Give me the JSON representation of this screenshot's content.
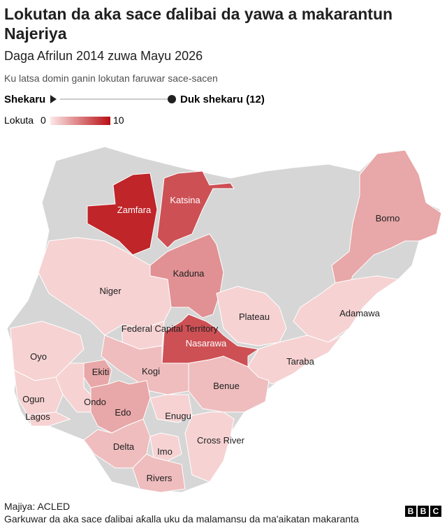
{
  "header": {
    "title": "Lokutan da aka sace ɗalibai da yawa a makarantun Najeriya",
    "subtitle": "Daga Afrilun 2014 zuwa Mayu 2026",
    "description": "Ku latsa domin ganin lokutan faruwar sace-sacen"
  },
  "slider": {
    "start_label": "Shekaru",
    "end_label": "Duk shekaru (12)"
  },
  "legend": {
    "title": "Lokuta",
    "min": 0,
    "max": 10,
    "min_color": "#fde8e8",
    "max_color": "#b80f14"
  },
  "states": [
    {
      "name": "Zamfara",
      "value": 9
    },
    {
      "name": "Katsina",
      "value": 7
    },
    {
      "name": "Kaduna",
      "value": 4
    },
    {
      "name": "Nasarawa",
      "value": 7
    },
    {
      "name": "Borno",
      "value": 3
    },
    {
      "name": "Niger",
      "value": 1
    },
    {
      "name": "Federal Capital Territory",
      "value": 1
    },
    {
      "name": "Plateau",
      "value": 1
    },
    {
      "name": "Adamawa",
      "value": 1
    },
    {
      "name": "Taraba",
      "value": 1
    },
    {
      "name": "Benue",
      "value": 2
    },
    {
      "name": "Kogi",
      "value": 2
    },
    {
      "name": "Oyo",
      "value": 1
    },
    {
      "name": "Ekiti",
      "value": 3
    },
    {
      "name": "Ondo",
      "value": 1
    },
    {
      "name": "Ogun",
      "value": 1
    },
    {
      "name": "Lagos",
      "value": 1
    },
    {
      "name": "Edo",
      "value": 3
    },
    {
      "name": "Delta",
      "value": 2
    },
    {
      "name": "Enugu",
      "value": 1
    },
    {
      "name": "Imo",
      "value": 1
    },
    {
      "name": "Rivers",
      "value": 2
    },
    {
      "name": "Cross River",
      "value": 1
    }
  ],
  "footer": {
    "source": "Majiya: ACLED",
    "note": "Garkuwar da aka sace ɗalibai aƙalla uku da malamansu da ma'aikatan makaranta",
    "logo": [
      "B",
      "B",
      "C"
    ]
  }
}
